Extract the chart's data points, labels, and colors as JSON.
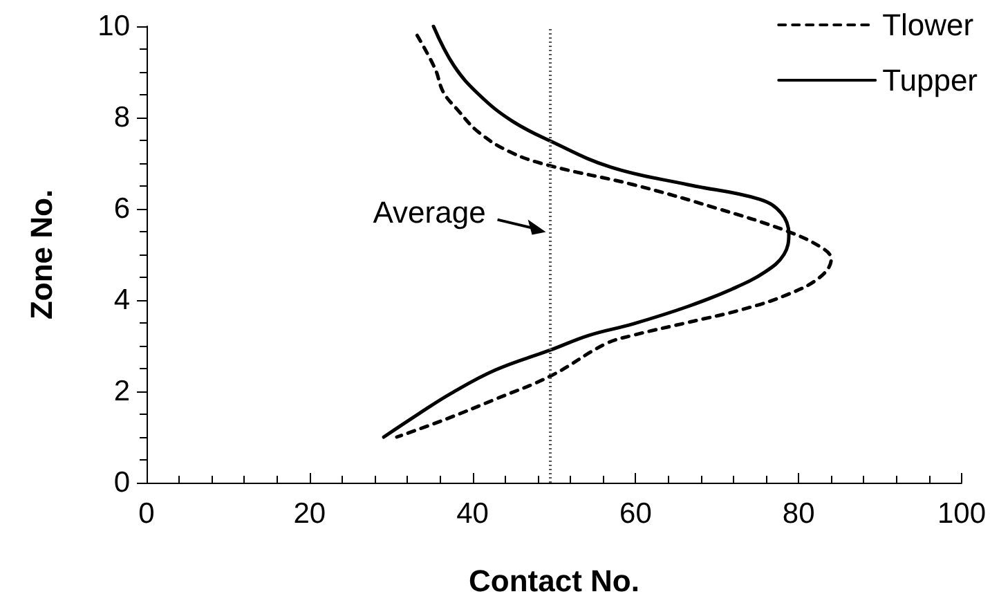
{
  "chart_data": {
    "type": "line",
    "xlabel": "Contact No.",
    "ylabel": "Zone No.",
    "xlim": [
      0,
      100
    ],
    "xticks": [
      0,
      20,
      40,
      60,
      80,
      100
    ],
    "ylim": [
      0,
      10
    ],
    "yticks": [
      0,
      2,
      4,
      6,
      8,
      10
    ],
    "grid": false,
    "legend": "top right",
    "marker": "none",
    "series": [
      {
        "name": "Tlower",
        "color": "#000000",
        "line_style": "dashed",
        "x": [
          33.2,
          35.4,
          36.4,
          38.1,
          40.8,
          44.8,
          49.6,
          59.7,
          69.8,
          78.6,
          83,
          84,
          82.6,
          78.6,
          73.2,
          66.4,
          59.7,
          56.3,
          49.6,
          42.8,
          36.7,
          30.7
        ],
        "values": [
          9.8,
          9.07,
          8.56,
          8.18,
          7.67,
          7.23,
          6.94,
          6.53,
          6.02,
          5.51,
          5.13,
          4.9,
          4.5,
          4.12,
          3.8,
          3.51,
          3.23,
          3.04,
          2.34,
          1.83,
          1.39,
          1.0
        ]
      },
      {
        "name": "Tupper",
        "color": "#000000",
        "line_style": "solid",
        "x": [
          35.2,
          37.7,
          40.8,
          44.8,
          49.6,
          57,
          66.4,
          75.2,
          77.9,
          78.8,
          78.2,
          75.9,
          71.8,
          66.4,
          59.7,
          54.3,
          49.6,
          42.8,
          37.4,
          33.4,
          29.1
        ],
        "values": [
          10,
          9.14,
          8.5,
          7.93,
          7.48,
          6.91,
          6.53,
          6.21,
          5.9,
          5.45,
          5.0,
          4.62,
          4.24,
          3.86,
          3.48,
          3.23,
          2.91,
          2.47,
          1.96,
          1.51,
          1.0
        ]
      }
    ],
    "ref_lines": [
      {
        "axis": "x",
        "value": 49.5,
        "label": "Average",
        "color": "#555555",
        "line_style": "dotted"
      }
    ]
  }
}
